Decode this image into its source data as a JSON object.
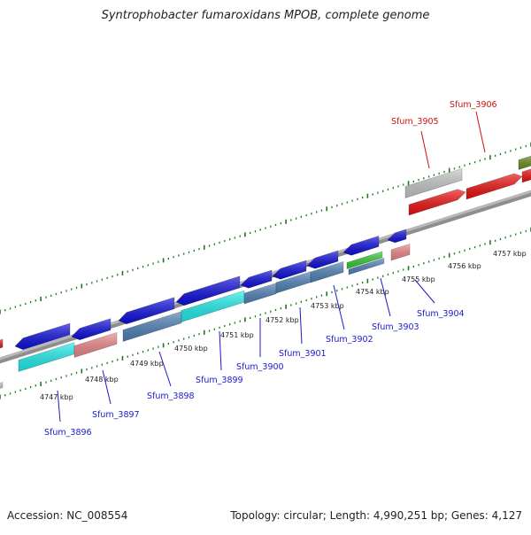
{
  "title": "Syntrophobacter fumaroxidans MPOB, complete genome",
  "footer": {
    "accession": "Accession: NC_008554",
    "topology": "Topology: circular; Length: 4,990,251 bp; Genes: 4,127"
  },
  "colors": {
    "backbone": "#909090",
    "tick": "#1a7a1a",
    "label_blue": "#1a1acc",
    "label_red": "#cc1111",
    "gene_blue": "#1010dd",
    "gene_cyan": "#22eeee",
    "gene_steel": "#4f82b8",
    "gene_pink": "#ee8888",
    "gene_red": "#ee1111",
    "gene_gray": "#c8c8c8",
    "gene_green": "#33cc33",
    "gene_olive": "#6b8e23"
  },
  "kbp_ticks": [
    "4747 kbp",
    "4748 kbp",
    "4749 kbp",
    "4750 kbp",
    "4751 kbp",
    "4752 kbp",
    "4753 kbp",
    "4754 kbp",
    "4755 kbp",
    "4756 kbp",
    "4757 kbp"
  ],
  "gene_labels": [
    {
      "text": "Sfum_3896",
      "color": "blue"
    },
    {
      "text": "Sfum_3897",
      "color": "blue"
    },
    {
      "text": "Sfum_3898",
      "color": "blue"
    },
    {
      "text": "Sfum_3899",
      "color": "blue"
    },
    {
      "text": "Sfum_3900",
      "color": "blue"
    },
    {
      "text": "Sfum_3901",
      "color": "blue"
    },
    {
      "text": "Sfum_3902",
      "color": "blue"
    },
    {
      "text": "Sfum_3903",
      "color": "blue"
    },
    {
      "text": "Sfum_3904",
      "color": "blue"
    },
    {
      "text": "Sfum_3905",
      "color": "red"
    },
    {
      "text": "Sfum_3906",
      "color": "red"
    }
  ]
}
